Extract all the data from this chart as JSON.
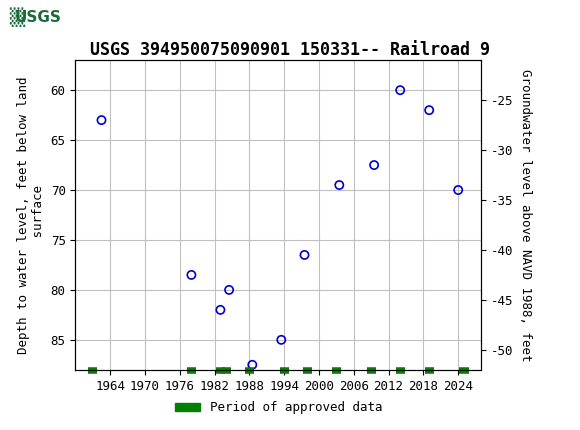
{
  "title": "USGS 394950075090901 150331-- Railroad 9",
  "ylabel_left": "Depth to water level, feet below land\n surface",
  "ylabel_right": "Groundwater level above NAVD 1988, feet",
  "data_points": [
    {
      "year": 1962.5,
      "depth": 63.0
    },
    {
      "year": 1978.0,
      "depth": 78.5
    },
    {
      "year": 1983.0,
      "depth": 82.0
    },
    {
      "year": 1984.5,
      "depth": 80.0
    },
    {
      "year": 1988.5,
      "depth": 87.5
    },
    {
      "year": 1993.5,
      "depth": 85.0
    },
    {
      "year": 1997.5,
      "depth": 76.5
    },
    {
      "year": 2003.5,
      "depth": 69.5
    },
    {
      "year": 2009.5,
      "depth": 67.5
    },
    {
      "year": 2014.0,
      "depth": 60.0
    },
    {
      "year": 2019.0,
      "depth": 62.0
    },
    {
      "year": 2024.0,
      "depth": 70.0
    }
  ],
  "green_marks_x": [
    1961,
    1978,
    1983,
    1984,
    1988,
    1994,
    1998,
    2003,
    2009,
    2014,
    2019,
    2025
  ],
  "xlim": [
    1958,
    2028
  ],
  "xticks": [
    1964,
    1970,
    1976,
    1982,
    1988,
    1994,
    2000,
    2006,
    2012,
    2018,
    2024
  ],
  "ylim_left": [
    88,
    57
  ],
  "yticks_left": [
    60,
    65,
    70,
    75,
    80,
    85
  ],
  "ylim_right": [
    -52,
    -21
  ],
  "yticks_right": [
    -25,
    -30,
    -35,
    -40,
    -45,
    -50
  ],
  "header_color": "#1a6b3c",
  "point_color": "#0000cc",
  "grid_color": "#c0c0c0",
  "bg_color": "#ffffff",
  "legend_label": "Period of approved data",
  "legend_color": "#008000",
  "title_fontsize": 12,
  "axis_label_fontsize": 9,
  "tick_fontsize": 9
}
